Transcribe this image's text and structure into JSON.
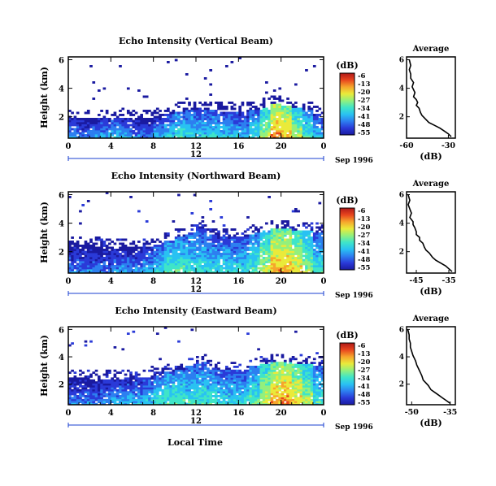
{
  "figure": {
    "xlabel_shared": "Local Time",
    "date_label": "Sep 1996",
    "day_label": "12",
    "cbar_unit": "(dB)",
    "cbar_ticks": [
      "-6",
      "-13",
      "-20",
      "-27",
      "-34",
      "-41",
      "-48",
      "-55"
    ],
    "colormap": [
      "#1a1aa0",
      "#2a3ad8",
      "#2d7ff0",
      "#29c2f2",
      "#3fe5c8",
      "#93f07c",
      "#eaea3a",
      "#f6a52c",
      "#e8451e",
      "#b01818"
    ]
  },
  "chart_data": [
    {
      "type": "heatmap",
      "title": "Echo Intensity (Vertical Beam)",
      "xlabel": "Local Time",
      "ylabel": "Height (km)",
      "x_ticks": [
        "0",
        "4",
        "8",
        "12",
        "16",
        "20",
        "0"
      ],
      "y_ticks": [
        "6",
        "4",
        "2"
      ],
      "xlim": [
        0,
        24
      ],
      "ylim": [
        0.5,
        6.2
      ],
      "zlim": [
        -55,
        -6
      ],
      "z_unit": "dB",
      "boundary_layer_top_km": [
        1.9,
        1.9,
        1.9,
        1.95,
        1.95,
        1.9,
        1.9,
        1.9,
        2.0,
        2.2,
        2.4,
        2.5,
        2.6,
        2.5,
        2.4,
        2.4,
        2.4,
        2.5,
        2.7,
        2.9,
        2.8,
        2.6,
        2.5,
        2.2
      ],
      "boundary_layer_max_db": [
        -38,
        -40,
        -38,
        -37,
        -34,
        -36,
        -40,
        -40,
        -36,
        -33,
        -30,
        -32,
        -34,
        -32,
        -34,
        -34,
        -36,
        -30,
        -22,
        -12,
        -14,
        -22,
        -28,
        -34
      ],
      "clear_air_max_db": -50
    },
    {
      "type": "line",
      "title": "Average",
      "xlabel": "(dB)",
      "ylabel": "",
      "x_ticks": [
        "-60",
        "-30"
      ],
      "y_ticks": [
        "6",
        "4",
        "2"
      ],
      "xlim": [
        -60,
        -25
      ],
      "ylim": [
        0.5,
        6.2
      ],
      "x": [
        -58,
        -57,
        -58,
        -57,
        -57,
        -55,
        -56,
        -55,
        -54,
        -55,
        -53,
        -52,
        -53,
        -51,
        -50,
        -49,
        -47,
        -44,
        -40,
        -36,
        -33,
        -30,
        -28
      ],
      "y": [
        6.0,
        5.6,
        5.3,
        5.0,
        4.7,
        4.4,
        4.1,
        3.9,
        3.7,
        3.4,
        3.2,
        3.0,
        2.8,
        2.6,
        2.3,
        2.1,
        1.9,
        1.6,
        1.4,
        1.2,
        1.0,
        0.8,
        0.6
      ]
    },
    {
      "type": "heatmap",
      "title": "Echo Intensity (Northward Beam)",
      "xlabel": "Local Time",
      "ylabel": "Height (km)",
      "x_ticks": [
        "0",
        "4",
        "8",
        "12",
        "16",
        "20",
        "0"
      ],
      "y_ticks": [
        "6",
        "4",
        "2"
      ],
      "xlim": [
        0,
        24
      ],
      "ylim": [
        0.5,
        6.2
      ],
      "zlim": [
        -55,
        -6
      ],
      "z_unit": "dB",
      "boundary_layer_top_km": [
        2.6,
        2.5,
        2.4,
        2.3,
        2.3,
        2.3,
        2.3,
        2.4,
        2.5,
        2.8,
        3.0,
        3.3,
        3.6,
        3.2,
        3.0,
        3.0,
        3.1,
        3.3,
        3.5,
        3.6,
        3.6,
        3.5,
        3.5,
        3.4
      ],
      "boundary_layer_max_db": [
        -40,
        -40,
        -40,
        -41,
        -38,
        -38,
        -38,
        -36,
        -32,
        -28,
        -28,
        -30,
        -32,
        -32,
        -32,
        -32,
        -32,
        -28,
        -22,
        -14,
        -14,
        -18,
        -24,
        -30
      ],
      "clear_air_max_db": -48
    },
    {
      "type": "line",
      "title": "Average",
      "xlabel": "(dB)",
      "ylabel": "",
      "x_ticks": [
        "-45",
        "-35"
      ],
      "y_ticks": [
        "6",
        "4",
        "2"
      ],
      "xlim": [
        -48,
        -33
      ],
      "ylim": [
        0.5,
        6.2
      ],
      "x": [
        -47.5,
        -47,
        -47.5,
        -47,
        -46.5,
        -47,
        -46,
        -46,
        -45.5,
        -45,
        -45,
        -44,
        -44,
        -43,
        -42.5,
        -42,
        -41,
        -40,
        -39,
        -37.5,
        -36,
        -35,
        -34
      ],
      "y": [
        6.0,
        5.6,
        5.3,
        5.0,
        4.7,
        4.4,
        4.1,
        3.9,
        3.7,
        3.4,
        3.2,
        3.0,
        2.8,
        2.6,
        2.3,
        2.1,
        1.9,
        1.6,
        1.4,
        1.2,
        1.0,
        0.8,
        0.6
      ]
    },
    {
      "type": "heatmap",
      "title": "Echo Intensity (Eastward Beam)",
      "xlabel": "Local Time",
      "ylabel": "Height (km)",
      "x_ticks": [
        "0",
        "4",
        "8",
        "12",
        "16",
        "20",
        "0"
      ],
      "y_ticks": [
        "6",
        "4",
        "2"
      ],
      "xlim": [
        0,
        24
      ],
      "ylim": [
        0.5,
        6.2
      ],
      "zlim": [
        -55,
        -6
      ],
      "z_unit": "dB",
      "boundary_layer_top_km": [
        2.5,
        2.5,
        2.4,
        2.4,
        2.4,
        2.4,
        2.5,
        2.5,
        2.6,
        2.9,
        3.1,
        3.3,
        3.6,
        3.2,
        3.0,
        3.0,
        3.1,
        3.3,
        3.5,
        3.6,
        3.6,
        3.5,
        3.5,
        3.4
      ],
      "boundary_layer_max_db": [
        -40,
        -40,
        -40,
        -38,
        -36,
        -36,
        -36,
        -34,
        -30,
        -28,
        -28,
        -30,
        -30,
        -30,
        -32,
        -32,
        -32,
        -28,
        -20,
        -14,
        -12,
        -16,
        -22,
        -30
      ],
      "clear_air_max_db": -48
    },
    {
      "type": "line",
      "title": "Average",
      "xlabel": "(dB)",
      "ylabel": "",
      "x_ticks": [
        "-50",
        "-35"
      ],
      "y_ticks": [
        "6",
        "4",
        "2"
      ],
      "xlim": [
        -52,
        -33
      ],
      "ylim": [
        0.5,
        6.2
      ],
      "x": [
        -51.5,
        -51,
        -51,
        -50.5,
        -50.5,
        -50,
        -49.5,
        -49,
        -48.5,
        -48,
        -47.5,
        -47,
        -46.5,
        -46,
        -45.5,
        -44.5,
        -43.5,
        -42.5,
        -41,
        -39.5,
        -38,
        -36.5,
        -35
      ],
      "y": [
        6.0,
        5.6,
        5.3,
        5.0,
        4.7,
        4.4,
        4.1,
        3.9,
        3.7,
        3.4,
        3.2,
        3.0,
        2.8,
        2.6,
        2.3,
        2.1,
        1.9,
        1.6,
        1.4,
        1.2,
        1.0,
        0.8,
        0.6
      ]
    }
  ]
}
